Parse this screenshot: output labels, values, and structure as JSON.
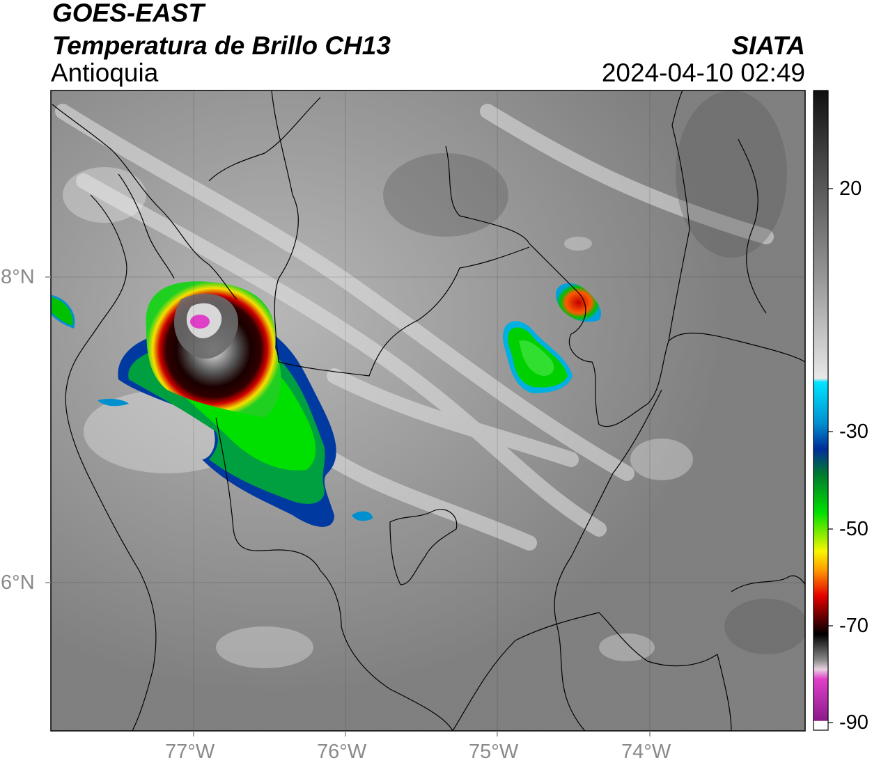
{
  "header": {
    "line1": "GOES-EAST",
    "line2": "Temperatura de Brillo CH13",
    "region": "Antioquia",
    "org": "SIATA",
    "datetime": "2024-04-10 02:49"
  },
  "axes": {
    "lat_ticks": [
      "8°N",
      "6°N"
    ],
    "lon_ticks": [
      "77°W",
      "76°W",
      "75°W",
      "74°W"
    ]
  },
  "colorbar": {
    "labels": [
      "20",
      "-30",
      "-50",
      "-70",
      "-90"
    ],
    "colors": {
      "gray_warm": "#1a1a1a",
      "gray_cold": "#f0f0f0",
      "cyan": "#00e5ff",
      "blue": "#002e9b",
      "green": "#00e000",
      "yellow": "#f7f700",
      "orange": "#ff8a00",
      "red": "#e60000",
      "darkred": "#3a0000",
      "magenta": "#e040c8",
      "purple": "#8a1a8a"
    }
  }
}
